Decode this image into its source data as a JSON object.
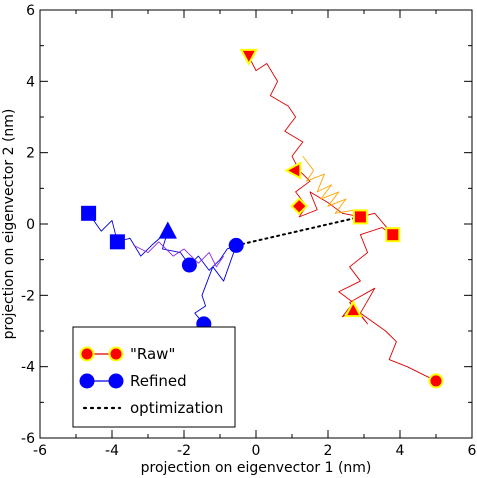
{
  "chart_data": {
    "type": "scatter",
    "xlabel": "projection on eigenvector 1 (nm)",
    "ylabel": "projection on eigenvector 2 (nm)",
    "xlim": [
      -6,
      6
    ],
    "ylim": [
      -6,
      6
    ],
    "xticks": [
      -6,
      -4,
      -2,
      0,
      2,
      4,
      6
    ],
    "yticks": [
      -6,
      -4,
      -2,
      0,
      2,
      4,
      6
    ],
    "grid": false,
    "legend_position": "bottom-left",
    "colors": {
      "raw_line": "#dd0000",
      "raw_marker": "#ff0000",
      "raw_marker_edge": "#ffff00",
      "raw_trace_alt": "#ffa500",
      "refined_line": "#0000dd",
      "refined_marker": "#0000ff",
      "refined_trace_alt": "#8a2be2",
      "optimization": "#000000"
    },
    "legend": [
      {
        "label": "\"Raw\"",
        "key": "raw"
      },
      {
        "label": "Refined",
        "key": "refined"
      },
      {
        "label": "optimization",
        "key": "optimization"
      }
    ],
    "raw_markers": [
      {
        "x": -0.2,
        "y": 4.7,
        "shape": "triangle-down"
      },
      {
        "x": 1.05,
        "y": 1.5,
        "shape": "triangle-left"
      },
      {
        "x": 1.2,
        "y": 0.5,
        "shape": "diamond"
      },
      {
        "x": 2.9,
        "y": 0.2,
        "shape": "square"
      },
      {
        "x": 3.8,
        "y": -0.3,
        "shape": "square"
      },
      {
        "x": 2.7,
        "y": -2.4,
        "shape": "triangle-up"
      },
      {
        "x": 5.0,
        "y": -4.4,
        "shape": "circle"
      }
    ],
    "refined_markers": [
      {
        "x": -4.65,
        "y": 0.3,
        "shape": "square"
      },
      {
        "x": -3.85,
        "y": -0.5,
        "shape": "square"
      },
      {
        "x": -2.45,
        "y": -0.2,
        "shape": "triangle-up"
      },
      {
        "x": -1.85,
        "y": -1.15,
        "shape": "circle"
      },
      {
        "x": -0.55,
        "y": -0.6,
        "shape": "circle"
      },
      {
        "x": -1.45,
        "y": -2.8,
        "shape": "circle"
      }
    ],
    "optimization_line": {
      "x": [
        -0.55,
        2.9
      ],
      "y": [
        -0.6,
        0.2
      ]
    },
    "raw_path": {
      "x": [
        -0.2,
        0.0,
        0.3,
        0.6,
        0.4,
        0.9,
        1.1,
        0.8,
        1.3,
        1.0,
        1.2,
        1.5,
        1.1,
        1.4,
        1.2,
        1.7,
        1.5,
        2.0,
        2.4,
        2.9,
        3.3,
        3.8,
        3.5,
        2.9,
        3.1,
        2.6,
        2.9,
        2.3,
        2.7,
        2.4,
        2.8,
        3.1,
        2.6,
        3.3,
        2.9,
        3.6,
        3.9,
        3.7,
        4.2,
        4.6,
        5.0
      ],
      "y": [
        4.7,
        4.3,
        4.5,
        4.0,
        3.6,
        3.3,
        3.0,
        2.6,
        2.3,
        1.9,
        1.5,
        1.2,
        0.9,
        0.5,
        0.2,
        0.4,
        0.9,
        0.6,
        0.3,
        0.2,
        0.3,
        -0.3,
        -0.1,
        -0.3,
        -0.8,
        -1.2,
        -1.6,
        -1.9,
        -2.2,
        -2.6,
        -2.4,
        -2.8,
        -2.2,
        -1.8,
        -2.5,
        -3.0,
        -3.3,
        -3.8,
        -4.0,
        -4.2,
        -4.4
      ]
    },
    "raw_path_alt": {
      "x": [
        1.3,
        1.6,
        1.4,
        1.9,
        1.7,
        2.1,
        1.8,
        2.3,
        2.0,
        2.5,
        2.2,
        2.8
      ],
      "y": [
        1.9,
        1.5,
        1.2,
        1.4,
        0.9,
        1.1,
        0.7,
        0.9,
        0.5,
        0.7,
        0.3,
        0.4
      ]
    },
    "refined_path": {
      "x": [
        -4.65,
        -4.3,
        -4.0,
        -3.85,
        -3.5,
        -3.2,
        -2.9,
        -2.45,
        -2.6,
        -2.1,
        -1.85,
        -1.6,
        -1.3,
        -1.0,
        -0.8,
        -0.55,
        -0.9,
        -1.2,
        -1.5,
        -1.4,
        -1.7,
        -1.45
      ],
      "y": [
        0.3,
        -0.2,
        0.1,
        -0.5,
        -0.4,
        -0.9,
        -0.6,
        -0.2,
        -0.7,
        -0.8,
        -1.15,
        -0.9,
        -1.3,
        -1.0,
        -0.7,
        -0.6,
        -1.6,
        -1.2,
        -2.0,
        -2.3,
        -2.5,
        -2.8
      ]
    },
    "refined_path_alt": {
      "x": [
        -3.4,
        -3.0,
        -2.7,
        -2.3,
        -2.0,
        -1.6,
        -1.3,
        -1.1,
        -0.9
      ],
      "y": [
        -0.6,
        -0.8,
        -0.5,
        -0.9,
        -0.7,
        -1.1,
        -0.8,
        -1.2,
        -0.9
      ]
    }
  }
}
